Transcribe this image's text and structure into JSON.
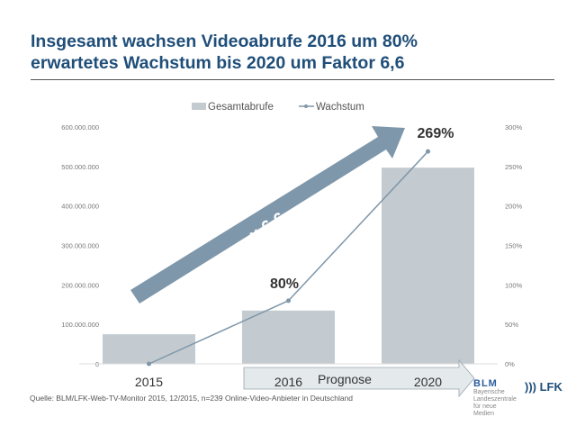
{
  "title_line1": "Insgesamt wachsen Videoabrufe 2016 um 80%",
  "title_line2": "erwartetes Wachstum bis 2020 um Faktor 6,6",
  "source": "Quelle: BLM/LFK-Web-TV-Monitor  2015, 12/2015, n=239 Online-Video-Anbieter in Deutschland",
  "logos": {
    "blm": "BLM",
    "blm_sub": "Bayerische Landeszentrale für neue Medien",
    "lfk": "LFK"
  },
  "arrow_label": "x 6,6",
  "prognose_label": "Prognose",
  "colors": {
    "title": "#1f4e79",
    "bars": "#c3cbd0",
    "line": "#7f97aa",
    "arrow": "#7f97aa"
  },
  "chart_data": {
    "type": "bar+line",
    "categories": [
      "2015",
      "2016",
      "2020"
    ],
    "series": [
      {
        "name": "Gesamtabrufe",
        "type": "bar",
        "axis": "left",
        "values": [
          75000000,
          135000000,
          497000000
        ]
      },
      {
        "name": "Wachstum",
        "type": "line",
        "axis": "right",
        "values": [
          0,
          80,
          269
        ]
      }
    ],
    "data_labels": [
      "80%",
      "269%"
    ],
    "y_left": {
      "ylim": [
        0,
        600000000
      ],
      "ticks": [
        "0",
        "100.000.000",
        "200.000.000",
        "300.000.000",
        "400.000.000",
        "500.000.000",
        "600.000.000"
      ]
    },
    "y_right": {
      "ylim": [
        0,
        300
      ],
      "ticks": [
        "0%",
        "50%",
        "100%",
        "150%",
        "200%",
        "250%",
        "300%"
      ]
    },
    "legend": "top",
    "grid": false
  }
}
